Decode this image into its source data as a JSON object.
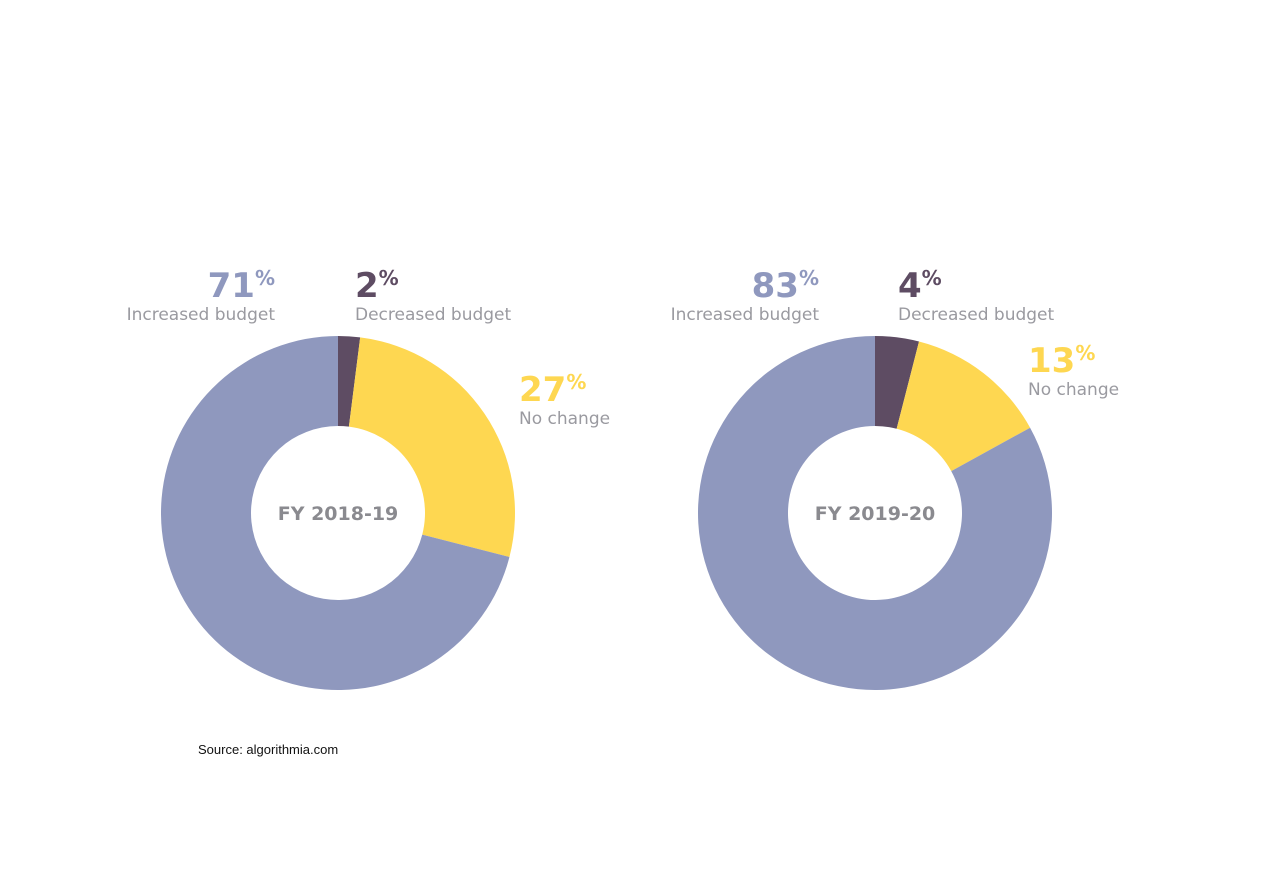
{
  "source_note": "Source: algorithmia.com",
  "colors": {
    "increased": "#8f98be",
    "decreased": "#5e4c63",
    "no_change": "#fed751",
    "label_text": "#9a9aa0",
    "center_text": "#8a8a8f"
  },
  "chart_data": [
    {
      "type": "pie",
      "variant": "donut",
      "center_label": "FY 2018-19",
      "slices": [
        {
          "label": "Decreased budget",
          "value": 2,
          "display": "2",
          "unit": "%",
          "color": "#5e4c63"
        },
        {
          "label": "No change",
          "value": 27,
          "display": "27",
          "unit": "%",
          "color": "#fed751"
        },
        {
          "label": "Increased budget",
          "value": 71,
          "display": "71",
          "unit": "%",
          "color": "#8f98be"
        }
      ]
    },
    {
      "type": "pie",
      "variant": "donut",
      "center_label": "FY 2019-20",
      "slices": [
        {
          "label": "Decreased budget",
          "value": 4,
          "display": "4",
          "unit": "%",
          "color": "#5e4c63"
        },
        {
          "label": "No change",
          "value": 13,
          "display": "13",
          "unit": "%",
          "color": "#fed751"
        },
        {
          "label": "Increased budget",
          "value": 83,
          "display": "83",
          "unit": "%",
          "color": "#8f98be"
        }
      ]
    }
  ]
}
